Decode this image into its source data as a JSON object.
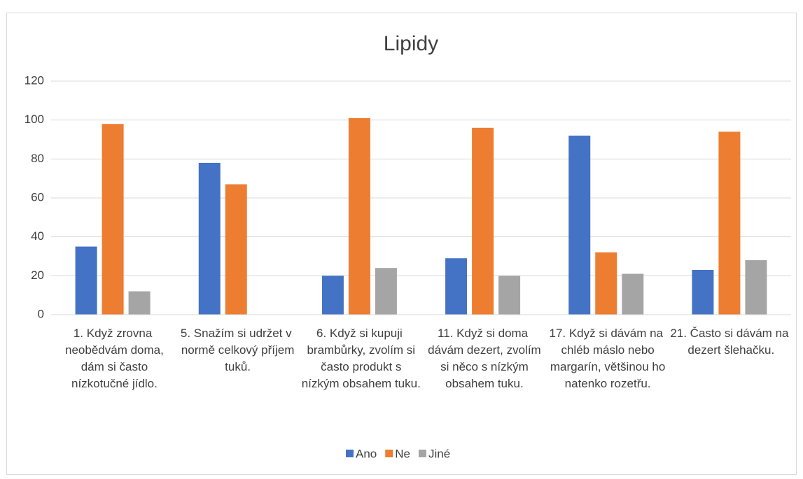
{
  "chart_data": {
    "type": "bar",
    "title": "Lipidy",
    "categories": [
      "1. Když zrovna neobědvám doma, dám si často nízkotučné jídlo.",
      "5. Snažím si udržet v normě celkový příjem tuků.",
      "6. Když si kupuji brambůrky, zvolím si často produkt s nízkým obsahem tuku.",
      "11. Když si doma dávám dezert, zvolím si něco s nízkým obsahem tuku.",
      "17. Když si dávám na chléb máslo nebo margarín, většinou ho natenko rozetřu.",
      "21. Často si dávám na dezert šlehačku."
    ],
    "series": [
      {
        "name": "Ano",
        "color": "#4472c4",
        "values": [
          35,
          78,
          20,
          29,
          92,
          23
        ]
      },
      {
        "name": "Ne",
        "color": "#ed7d31",
        "values": [
          98,
          67,
          101,
          96,
          32,
          94
        ]
      },
      {
        "name": "Jiné",
        "color": "#a5a5a5",
        "values": [
          12,
          0,
          24,
          20,
          21,
          28
        ]
      }
    ],
    "ylim": [
      0,
      120
    ],
    "yticks": [
      0,
      20,
      40,
      60,
      80,
      100,
      120
    ],
    "grid": true,
    "legend": "bottom"
  }
}
